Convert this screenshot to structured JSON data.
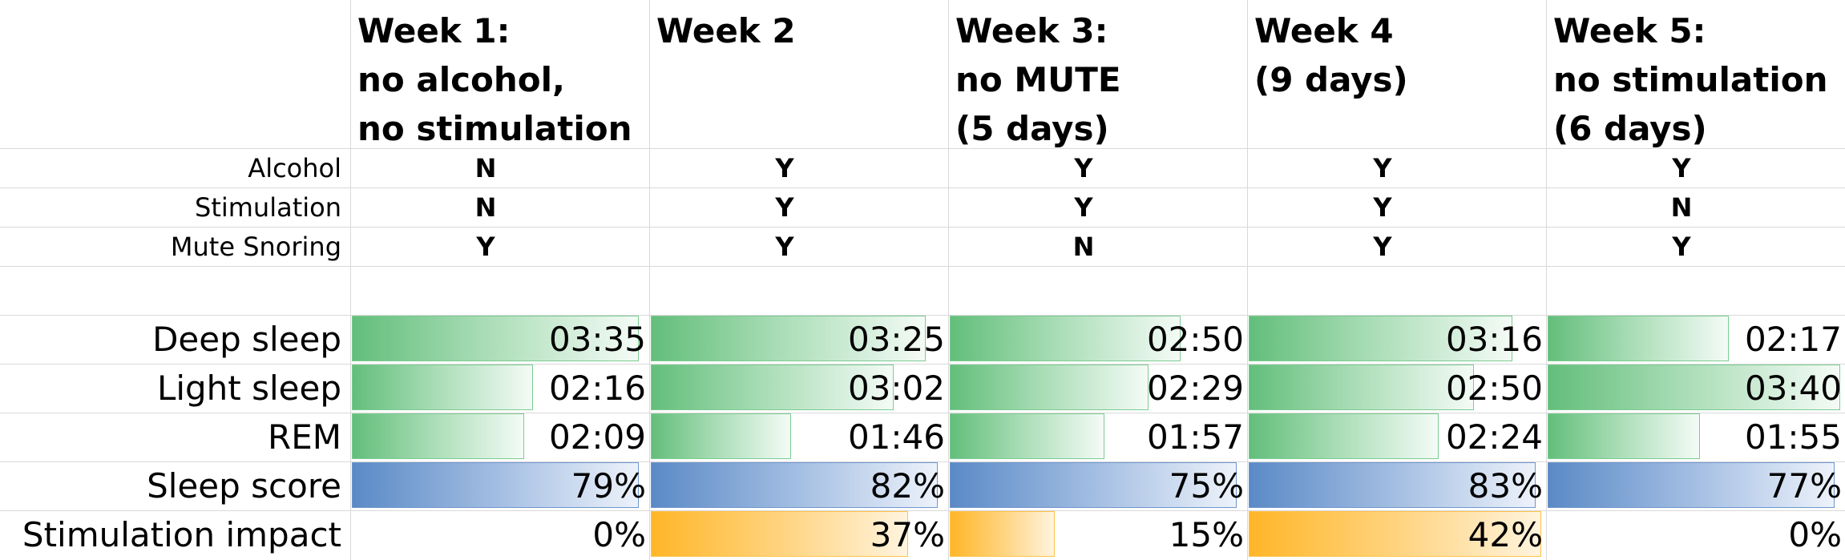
{
  "headers": [
    "Week 1:\nno alcohol,\nno stimulation",
    "Week 2",
    "Week 3:\nno MUTE\n(5 days)",
    "Week 4\n(9 days)",
    "Week 5:\nno stimulation\n(6 days)"
  ],
  "conditions": {
    "labels": [
      "Alcohol",
      "Stimulation",
      "Mute Snoring"
    ],
    "values": [
      [
        "N",
        "Y",
        "Y",
        "Y",
        "Y"
      ],
      [
        "N",
        "Y",
        "Y",
        "Y",
        "N"
      ],
      [
        "Y",
        "Y",
        "N",
        "Y",
        "Y"
      ]
    ]
  },
  "metrics": {
    "labels": [
      "Deep sleep",
      "Light sleep",
      "REM",
      "Sleep score",
      "Stimulation impact"
    ],
    "values": [
      [
        "03:35",
        "03:25",
        "02:50",
        "03:16",
        "02:17"
      ],
      [
        "02:16",
        "03:02",
        "02:29",
        "02:50",
        "03:40"
      ],
      [
        "02:09",
        "01:46",
        "01:57",
        "02:24",
        "01:55"
      ],
      [
        "79%",
        "82%",
        "75%",
        "83%",
        "77%"
      ],
      [
        "0%",
        "37%",
        "15%",
        "42%",
        "0%"
      ]
    ],
    "bar_fraction": [
      [
        0.98,
        0.94,
        0.79,
        0.9,
        0.62
      ],
      [
        0.62,
        0.83,
        0.68,
        0.77,
        1.0
      ],
      [
        0.59,
        0.48,
        0.53,
        0.65,
        0.52
      ],
      [
        0.98,
        0.98,
        0.98,
        0.98,
        0.98
      ],
      [
        0.0,
        0.88,
        0.36,
        1.0,
        0.0
      ]
    ],
    "bar_colors": [
      "green",
      "green",
      "green",
      "blue",
      "orange"
    ]
  },
  "colors": {
    "green": "#63be7b",
    "blue": "#5a8ac6",
    "orange": "#ffb628",
    "grid": "#d9d9d9"
  }
}
